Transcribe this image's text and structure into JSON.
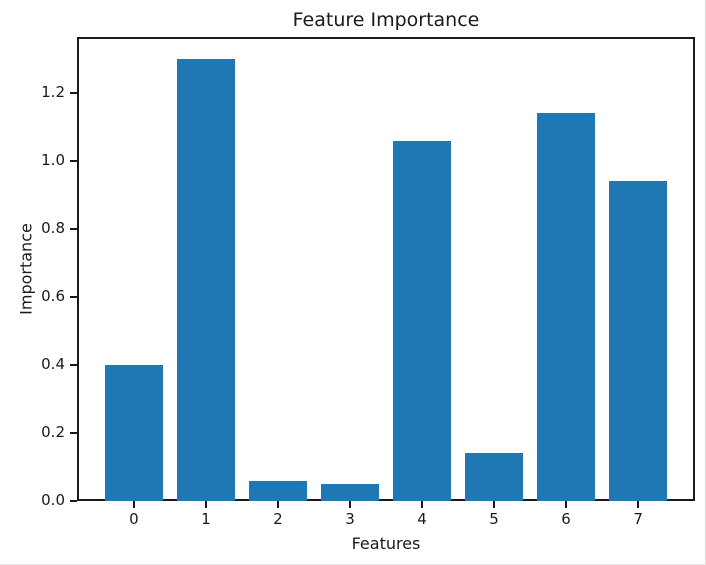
{
  "chart_data": {
    "type": "bar",
    "title": "Feature Importance",
    "xlabel": "Features",
    "ylabel": "Importance",
    "categories": [
      "0",
      "1",
      "2",
      "3",
      "4",
      "5",
      "6",
      "7"
    ],
    "values": [
      0.4,
      1.3,
      0.06,
      0.05,
      1.06,
      0.14,
      1.14,
      0.94
    ],
    "bar_color": "#1f77b4",
    "bar_width": 0.8,
    "y_ticks": [
      0.0,
      0.2,
      0.4,
      0.6,
      0.8,
      1.0,
      1.2
    ],
    "y_tick_labels": [
      "0.0",
      "0.2",
      "0.4",
      "0.6",
      "0.8",
      "1.0",
      "1.2"
    ],
    "xlim": [
      -0.79,
      7.79
    ],
    "ylim": [
      0,
      1.365
    ],
    "grid": false,
    "legend_position": "none"
  }
}
